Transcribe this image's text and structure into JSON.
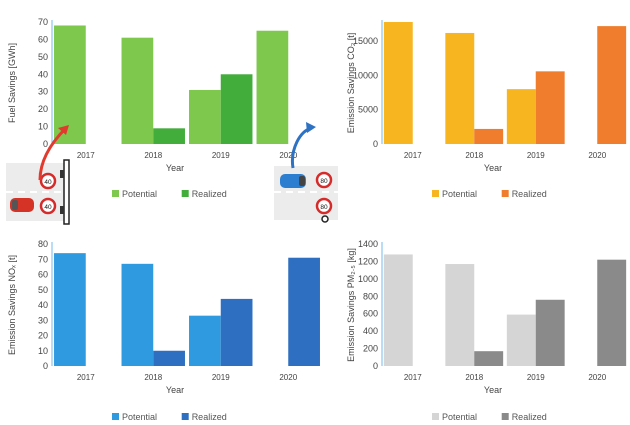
{
  "chart_data": [
    {
      "type": "bar",
      "categories": [
        "2017",
        "2018",
        "2019",
        "2020"
      ],
      "series": [
        {
          "name": "Potential",
          "values": [
            68,
            61,
            31,
            65
          ]
        },
        {
          "name": "Realized",
          "values": [
            null,
            9,
            40,
            null
          ]
        }
      ],
      "xlabel": "Year",
      "ylabel": "Fuel Savings [GWh]",
      "ylim": [
        0,
        70
      ],
      "yticks": [
        "0",
        "10",
        "20",
        "30",
        "40",
        "50",
        "60",
        "70"
      ],
      "grid": false,
      "legend": "bottom",
      "colors": {
        "Potential": "#7dc84d",
        "Realized": "#43ad3c"
      }
    },
    {
      "type": "bar",
      "categories": [
        "2017",
        "2018",
        "2019",
        "2020"
      ],
      "series": [
        {
          "name": "Potential",
          "values": [
            17800,
            16200,
            8000,
            null
          ]
        },
        {
          "name": "Realized",
          "values": [
            null,
            2200,
            10600,
            17200
          ]
        }
      ],
      "xlabel": "Year",
      "ylabel": "Emission Savings CO₂ [t]",
      "ylim": [
        0,
        17800
      ],
      "yticks": [
        "0",
        "5000",
        "10000",
        "15000"
      ],
      "grid": false,
      "legend": "bottom",
      "colors": {
        "Potential": "#f7b520",
        "Realized": "#ef7d2d"
      }
    },
    {
      "type": "bar",
      "categories": [
        "2017",
        "2018",
        "2019",
        "2020"
      ],
      "series": [
        {
          "name": "Potential",
          "values": [
            74,
            67,
            33,
            null
          ]
        },
        {
          "name": "Realized",
          "values": [
            null,
            10,
            44,
            71
          ]
        }
      ],
      "xlabel": "Year",
      "ylabel": "Emission Savings NOₓ [t]",
      "ylim": [
        0,
        80
      ],
      "yticks": [
        "0",
        "10",
        "20",
        "30",
        "40",
        "50",
        "60",
        "70",
        "80"
      ],
      "grid": false,
      "legend": "bottom",
      "colors": {
        "Potential": "#2f9ae0",
        "Realized": "#2e6fc1"
      }
    },
    {
      "type": "bar",
      "categories": [
        "2017",
        "2018",
        "2019",
        "2020"
      ],
      "series": [
        {
          "name": "Potential",
          "values": [
            1280,
            1170,
            590,
            null
          ]
        },
        {
          "name": "Realized",
          "values": [
            null,
            170,
            760,
            1220
          ]
        }
      ],
      "xlabel": "Year",
      "ylabel": "Emission Savings PM₂.₅ [kg]",
      "ylim": [
        0,
        1400
      ],
      "yticks": [
        "0",
        "200",
        "400",
        "600",
        "800",
        "1000",
        "1200",
        "1400"
      ],
      "grid": false,
      "legend": "bottom",
      "colors": {
        "Potential": "#d5d5d5",
        "Realized": "#8a8a8a"
      }
    }
  ],
  "illustrations": {
    "left_signs": [
      "40",
      "40"
    ],
    "right_signs": [
      "80",
      "80"
    ],
    "arrow_left_color": "#e23b2e",
    "arrow_right_color": "#2e72c4"
  }
}
